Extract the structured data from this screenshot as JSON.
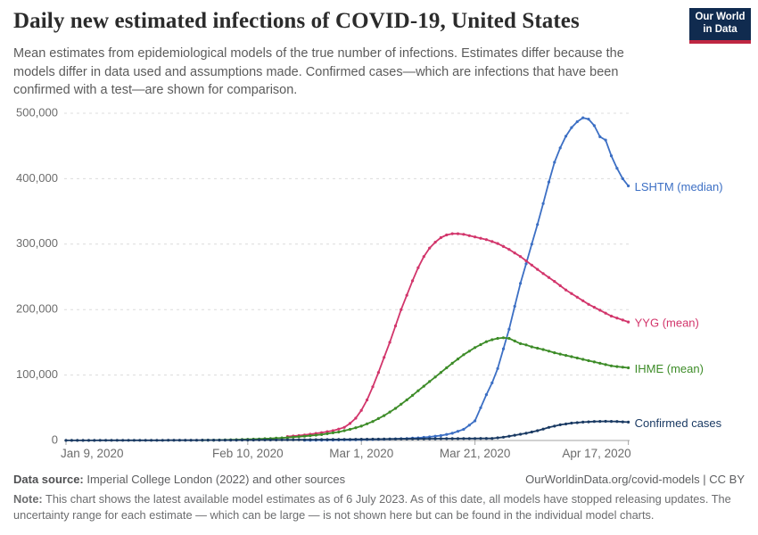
{
  "header": {
    "title": "Daily new estimated infections of COVID-19, United States",
    "subtitle": "Mean estimates from epidemiological models of the true number of infections. Estimates differ because the models differ in data used and assumptions made. Confirmed cases—which are infections that have been confirmed with a test—are shown for comparison.",
    "logo": {
      "line1": "Our World",
      "line2": "in Data",
      "bg_color": "#102b4f",
      "bar_color": "#bf2742"
    }
  },
  "footer": {
    "source_label": "Data source:",
    "source_text": " Imperial College London (2022) and other sources",
    "link_text": "OurWorldinData.org/covid-models | CC BY",
    "note_label": "Note:",
    "note_text": " This chart shows the latest available model estimates as of 6 July 2023. As of this date, all models have stopped releasing updates. The uncertainty range for each estimate — which can be large — is not shown here but can be found in the individual model charts."
  },
  "chart_data": {
    "type": "line",
    "title": "Daily new estimated infections of COVID-19, United States",
    "x_start_date": "2020-01-09",
    "x_unit": "days since Jan 9, 2020",
    "ylim": [
      0,
      500000
    ],
    "grid": true,
    "legend_position": "line-end-labels",
    "y_ticks": [
      0,
      100000,
      200000,
      300000,
      400000,
      500000
    ],
    "x_ticks": [
      {
        "day": 0,
        "label": "Jan 9, 2020"
      },
      {
        "day": 32,
        "label": "Feb 10, 2020"
      },
      {
        "day": 52,
        "label": "Mar 1, 2020"
      },
      {
        "day": 72,
        "label": "Mar 21, 2020"
      },
      {
        "day": 99,
        "label": "Apr 17, 2020"
      }
    ],
    "series": [
      {
        "name": "LSHTM (median)",
        "color": "#3c6fc4",
        "points": [
          [
            42,
            400
          ],
          [
            45,
            600
          ],
          [
            48,
            800
          ],
          [
            51,
            1100
          ],
          [
            54,
            1500
          ],
          [
            57,
            2200
          ],
          [
            60,
            3000
          ],
          [
            62,
            4000
          ],
          [
            64,
            5500
          ],
          [
            66,
            7500
          ],
          [
            68,
            11000
          ],
          [
            70,
            17000
          ],
          [
            72,
            30000
          ],
          [
            74,
            70000
          ],
          [
            75,
            88000
          ],
          [
            76,
            110000
          ],
          [
            77,
            140000
          ],
          [
            78,
            170000
          ],
          [
            79,
            205000
          ],
          [
            80,
            240000
          ],
          [
            81,
            270000
          ],
          [
            82,
            300000
          ],
          [
            83,
            330000
          ],
          [
            84,
            362000
          ],
          [
            85,
            395000
          ],
          [
            86,
            425000
          ],
          [
            87,
            447000
          ],
          [
            88,
            465000
          ],
          [
            89,
            478000
          ],
          [
            90,
            487000
          ],
          [
            91,
            493000
          ],
          [
            92,
            491000
          ],
          [
            93,
            481000
          ],
          [
            94,
            464000
          ],
          [
            95,
            459000
          ],
          [
            96,
            435000
          ],
          [
            97,
            416000
          ],
          [
            98,
            400000
          ],
          [
            99,
            389000
          ]
        ]
      },
      {
        "name": "YYG (mean)",
        "color": "#d2356b",
        "points": [
          [
            39,
            6000
          ],
          [
            41,
            7500
          ],
          [
            43,
            9500
          ],
          [
            45,
            12000
          ],
          [
            47,
            15000
          ],
          [
            49,
            20000
          ],
          [
            50,
            26000
          ],
          [
            51,
            34000
          ],
          [
            52,
            46000
          ],
          [
            53,
            62000
          ],
          [
            54,
            82000
          ],
          [
            55,
            104000
          ],
          [
            56,
            127000
          ],
          [
            57,
            150000
          ],
          [
            58,
            175000
          ],
          [
            59,
            200000
          ],
          [
            60,
            222000
          ],
          [
            61,
            244000
          ],
          [
            62,
            264000
          ],
          [
            63,
            281000
          ],
          [
            64,
            294000
          ],
          [
            65,
            303000
          ],
          [
            66,
            310000
          ],
          [
            67,
            314000
          ],
          [
            68,
            316000
          ],
          [
            69,
            316000
          ],
          [
            70,
            315000
          ],
          [
            71,
            313000
          ],
          [
            72,
            311000
          ],
          [
            74,
            307000
          ],
          [
            76,
            301000
          ],
          [
            78,
            292000
          ],
          [
            80,
            281000
          ],
          [
            82,
            268000
          ],
          [
            84,
            255000
          ],
          [
            86,
            243000
          ],
          [
            88,
            230000
          ],
          [
            90,
            219000
          ],
          [
            92,
            208000
          ],
          [
            94,
            199000
          ],
          [
            96,
            190000
          ],
          [
            98,
            184000
          ],
          [
            99,
            181000
          ]
        ]
      },
      {
        "name": "IHME (mean)",
        "color": "#3d8c28",
        "points": [
          [
            24,
            400
          ],
          [
            27,
            700
          ],
          [
            30,
            1200
          ],
          [
            33,
            2000
          ],
          [
            36,
            3000
          ],
          [
            39,
            4500
          ],
          [
            42,
            6500
          ],
          [
            45,
            9000
          ],
          [
            48,
            13000
          ],
          [
            50,
            17000
          ],
          [
            52,
            22000
          ],
          [
            54,
            29000
          ],
          [
            56,
            38000
          ],
          [
            58,
            49000
          ],
          [
            60,
            62000
          ],
          [
            62,
            76000
          ],
          [
            64,
            90000
          ],
          [
            66,
            104000
          ],
          [
            68,
            118000
          ],
          [
            70,
            131000
          ],
          [
            72,
            142000
          ],
          [
            74,
            151000
          ],
          [
            75,
            154000
          ],
          [
            76,
            156000
          ],
          [
            77,
            157000
          ],
          [
            78,
            156000
          ],
          [
            79,
            152000
          ],
          [
            80,
            148000
          ],
          [
            81,
            146000
          ],
          [
            82,
            143000
          ],
          [
            84,
            139000
          ],
          [
            86,
            134000
          ],
          [
            88,
            130000
          ],
          [
            90,
            126000
          ],
          [
            92,
            122000
          ],
          [
            94,
            118000
          ],
          [
            96,
            114000
          ],
          [
            98,
            112000
          ],
          [
            99,
            111000
          ]
        ]
      },
      {
        "name": "Confirmed cases",
        "color": "#1a3a63",
        "points": [
          [
            0,
            200
          ],
          [
            5,
            200
          ],
          [
            10,
            300
          ],
          [
            15,
            300
          ],
          [
            20,
            400
          ],
          [
            25,
            500
          ],
          [
            30,
            600
          ],
          [
            35,
            800
          ],
          [
            40,
            1000
          ],
          [
            45,
            1300
          ],
          [
            50,
            1700
          ],
          [
            55,
            2100
          ],
          [
            60,
            2500
          ],
          [
            64,
            2700
          ],
          [
            68,
            2900
          ],
          [
            72,
            3000
          ],
          [
            75,
            3200
          ],
          [
            77,
            5000
          ],
          [
            79,
            8000
          ],
          [
            81,
            11000
          ],
          [
            83,
            15000
          ],
          [
            85,
            20000
          ],
          [
            87,
            24000
          ],
          [
            89,
            26500
          ],
          [
            91,
            28000
          ],
          [
            93,
            29000
          ],
          [
            95,
            29300
          ],
          [
            97,
            29000
          ],
          [
            99,
            28000
          ]
        ]
      }
    ]
  }
}
